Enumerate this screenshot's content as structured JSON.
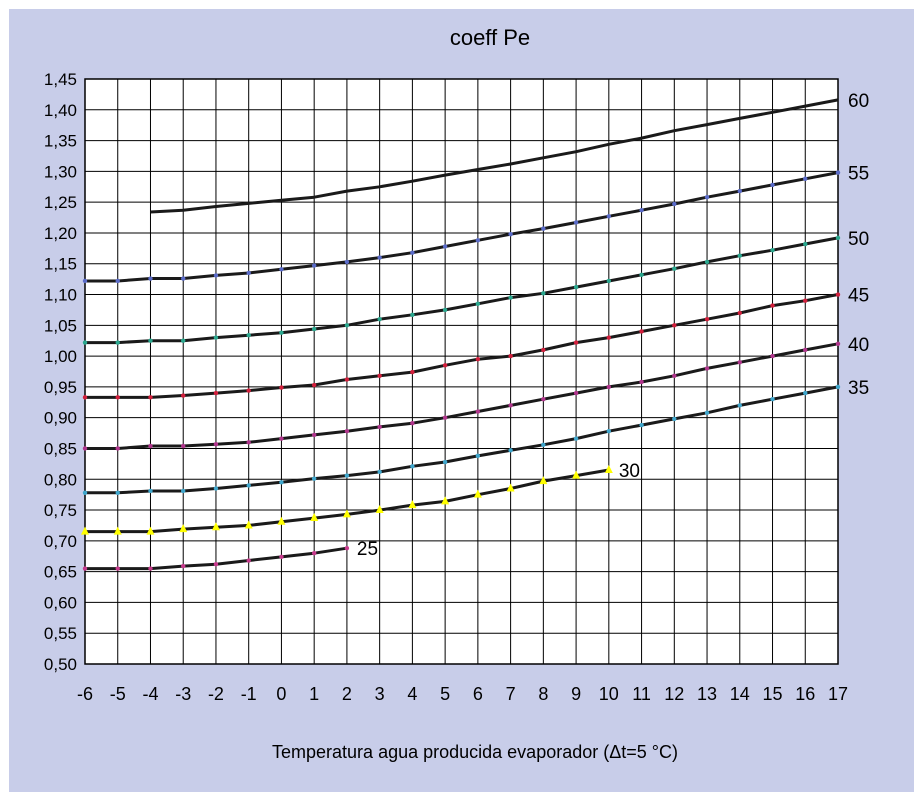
{
  "colors": {
    "background": "#c8cde9",
    "frame": "#ffffff",
    "grid": "#000000",
    "curve": "#1a1a1a",
    "marker_35": "#3fa6cc",
    "marker_40": "#b0358c",
    "marker_45": "#d21f3c",
    "marker_50": "#2aa78e",
    "marker_55": "#5a6bc8",
    "marker_25": "#c63a8c",
    "marker_30": "#ffff00"
  },
  "chart_data": {
    "type": "line",
    "title": "coeff Pe",
    "xlabel": "Temperatura agua producida evaporador (Δt=5 °C)",
    "ylabel": "",
    "xlim": [
      -6,
      17
    ],
    "ylim": [
      0.5,
      1.45
    ],
    "grid": true,
    "x_ticks": [
      "-6",
      "-5",
      "-4",
      "-3",
      "-2",
      "-1",
      "0",
      "1",
      "2",
      "3",
      "4",
      "5",
      "6",
      "7",
      "8",
      "9",
      "10",
      "11",
      "12",
      "13",
      "14",
      "15",
      "16",
      "17"
    ],
    "y_ticks": [
      "0,50",
      "0,55",
      "0,60",
      "0,65",
      "0,70",
      "0,75",
      "0,80",
      "0,85",
      "0,90",
      "0,95",
      "1,00",
      "1,05",
      "1,10",
      "1,15",
      "1,20",
      "1,25",
      "1,30",
      "1,35",
      "1,40",
      "1,45"
    ],
    "series": [
      {
        "name": "25",
        "x": [
          -6,
          -5,
          -4,
          -3,
          -2,
          -1,
          0,
          1,
          2
        ],
        "values": [
          0.655,
          0.655,
          0.655,
          0.659,
          0.662,
          0.668,
          0.674,
          0.68,
          0.688
        ]
      },
      {
        "name": "30",
        "x": [
          -6,
          -5,
          -4,
          -3,
          -2,
          -1,
          0,
          1,
          2,
          3,
          4,
          5,
          6,
          7,
          8,
          9,
          10
        ],
        "values": [
          0.715,
          0.715,
          0.715,
          0.719,
          0.722,
          0.725,
          0.731,
          0.737,
          0.743,
          0.75,
          0.758,
          0.764,
          0.775,
          0.785,
          0.797,
          0.806,
          0.815
        ]
      },
      {
        "name": "35",
        "x": [
          -6,
          -5,
          -4,
          -3,
          -2,
          -1,
          0,
          1,
          2,
          3,
          4,
          5,
          6,
          7,
          8,
          9,
          10,
          11,
          12,
          13,
          14,
          15,
          16,
          17
        ],
        "values": [
          0.778,
          0.778,
          0.781,
          0.781,
          0.785,
          0.79,
          0.795,
          0.801,
          0.806,
          0.812,
          0.821,
          0.828,
          0.838,
          0.847,
          0.856,
          0.866,
          0.878,
          0.888,
          0.898,
          0.908,
          0.92,
          0.93,
          0.94,
          0.95
        ]
      },
      {
        "name": "40",
        "x": [
          -6,
          -5,
          -4,
          -3,
          -2,
          -1,
          0,
          1,
          2,
          3,
          4,
          5,
          6,
          7,
          8,
          9,
          10,
          11,
          12,
          13,
          14,
          15,
          16,
          17
        ],
        "values": [
          0.85,
          0.85,
          0.854,
          0.854,
          0.857,
          0.86,
          0.866,
          0.872,
          0.878,
          0.885,
          0.891,
          0.9,
          0.91,
          0.92,
          0.93,
          0.94,
          0.95,
          0.958,
          0.968,
          0.98,
          0.99,
          1.0,
          1.01,
          1.02
        ]
      },
      {
        "name": "45",
        "x": [
          -6,
          -5,
          -4,
          -3,
          -2,
          -1,
          0,
          1,
          2,
          3,
          4,
          5,
          6,
          7,
          8,
          9,
          10,
          11,
          12,
          13,
          14,
          15,
          16,
          17
        ],
        "values": [
          0.933,
          0.933,
          0.933,
          0.936,
          0.94,
          0.944,
          0.949,
          0.953,
          0.962,
          0.968,
          0.974,
          0.985,
          0.995,
          1.0,
          1.01,
          1.022,
          1.03,
          1.04,
          1.05,
          1.06,
          1.07,
          1.082,
          1.09,
          1.1
        ]
      },
      {
        "name": "50",
        "x": [
          -6,
          -5,
          -4,
          -3,
          -2,
          -1,
          0,
          1,
          2,
          3,
          4,
          5,
          6,
          7,
          8,
          9,
          10,
          11,
          12,
          13,
          14,
          15,
          16,
          17
        ],
        "values": [
          1.022,
          1.022,
          1.025,
          1.025,
          1.03,
          1.034,
          1.038,
          1.044,
          1.05,
          1.06,
          1.067,
          1.075,
          1.085,
          1.095,
          1.102,
          1.112,
          1.122,
          1.132,
          1.142,
          1.153,
          1.163,
          1.172,
          1.182,
          1.192
        ]
      },
      {
        "name": "55",
        "x": [
          -6,
          -5,
          -4,
          -3,
          -2,
          -1,
          0,
          1,
          2,
          3,
          4,
          5,
          6,
          7,
          8,
          9,
          10,
          11,
          12,
          13,
          14,
          15,
          16,
          17
        ],
        "values": [
          1.122,
          1.122,
          1.126,
          1.126,
          1.131,
          1.135,
          1.141,
          1.147,
          1.153,
          1.16,
          1.168,
          1.178,
          1.188,
          1.198,
          1.207,
          1.217,
          1.227,
          1.237,
          1.247,
          1.258,
          1.268,
          1.278,
          1.288,
          1.298
        ]
      },
      {
        "name": "60",
        "x": [
          -4,
          -3,
          -2,
          -1,
          0,
          1,
          2,
          3,
          4,
          5,
          6,
          7,
          8,
          9,
          10,
          11,
          12,
          13,
          14,
          15,
          16,
          17
        ],
        "values": [
          1.234,
          1.237,
          1.243,
          1.248,
          1.253,
          1.258,
          1.268,
          1.275,
          1.284,
          1.294,
          1.303,
          1.312,
          1.322,
          1.332,
          1.344,
          1.354,
          1.366,
          1.376,
          1.386,
          1.396,
          1.406,
          1.416
        ]
      }
    ]
  }
}
